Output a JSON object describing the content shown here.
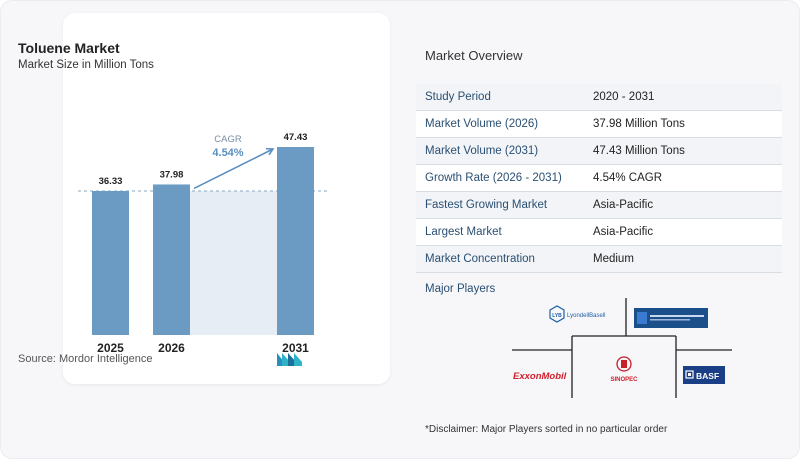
{
  "chart": {
    "title": "Toluene Market",
    "subtitle": "Market Size in Million Tons",
    "source": "Source:  Mordor Intelligence",
    "cagr_label": "CAGR",
    "cagr_value": "4.54%"
  },
  "chart_data": {
    "type": "bar",
    "title": "Toluene Market",
    "subtitle": "Market Size in Million Tons",
    "categories": [
      "2025",
      "2026",
      "2031"
    ],
    "values": [
      36.33,
      37.98,
      47.43
    ],
    "value_labels": [
      "36.33",
      "37.98",
      "47.43"
    ],
    "annotation": "CAGR 4.54%",
    "grid": false,
    "colors": {
      "bar": "#6b9bc3",
      "bar_dark": "#5a87b0",
      "band": "#e6edf4",
      "arrow": "#5b8fc0"
    }
  },
  "overview": {
    "title": "Market Overview",
    "rows": [
      {
        "key": "Study Period",
        "value": "2020 - 2031"
      },
      {
        "key": "Market Volume (2026)",
        "value": "37.98 Million Tons"
      },
      {
        "key": "Market Volume (2031)",
        "value": "47.43 Million Tons"
      },
      {
        "key": "Growth Rate (2026 - 2031)",
        "value": "4.54% CAGR"
      },
      {
        "key": "Fastest Growing Market",
        "value": "Asia-Pacific"
      },
      {
        "key": "Largest Market",
        "value": "Asia-Pacific"
      },
      {
        "key": "Market Concentration",
        "value": "Medium"
      }
    ]
  },
  "players": {
    "title": "Major Players",
    "logos": {
      "lyb_mark": "LYB",
      "lyondell": "LyondellBasell",
      "exxon": "ExxonMobil",
      "sinopec": "SINOPEC",
      "basf": "BASF"
    }
  },
  "disclaimer": "*Disclaimer: Major Players sorted in no particular order"
}
